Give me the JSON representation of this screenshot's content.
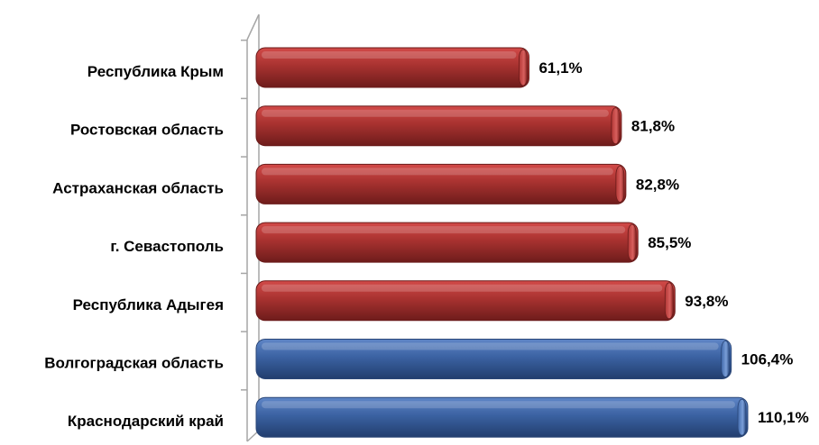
{
  "chart_data": {
    "type": "bar",
    "orientation": "horizontal",
    "categories": [
      "Республика Крым",
      "Ростовская область",
      "Астраханская область",
      "г. Севастополь",
      "Республика Адыгея",
      "Волгоградская область",
      "Краснодарский край"
    ],
    "values": [
      61.1,
      81.8,
      82.8,
      85.5,
      93.8,
      106.4,
      110.1
    ],
    "value_labels": [
      "61,1%",
      "81,8%",
      "82,8%",
      "85,5%",
      "93,8%",
      "106,4%",
      "110,1%"
    ],
    "unit": "%",
    "xlim": [
      0,
      115
    ],
    "title": "",
    "xlabel": "",
    "ylabel": "",
    "grid": false,
    "legend": "none",
    "colors": {
      "below_100": "#a5302e",
      "above_100": "#3c63a0"
    }
  }
}
